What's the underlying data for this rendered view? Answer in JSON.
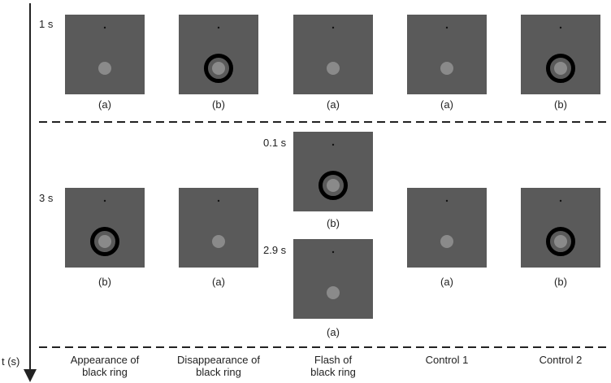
{
  "axis_label": "t (s)",
  "rows": {
    "top_time": "1 s",
    "bottom_time": "3 s",
    "flash_top_time": "0.1 s",
    "flash_bottom_time": "2.9 s"
  },
  "top_row": [
    {
      "caption": "(a)",
      "ring": false
    },
    {
      "caption": "(b)",
      "ring": true
    },
    {
      "caption": "(a)",
      "ring": false
    },
    {
      "caption": "(a)",
      "ring": false
    },
    {
      "caption": "(b)",
      "ring": true
    }
  ],
  "bottom_row": [
    {
      "caption": "(b)",
      "ring": true
    },
    {
      "caption": "(a)",
      "ring": false
    },
    {
      "caption": "(b)",
      "ring": true
    },
    {
      "caption": "(a)",
      "ring": false
    },
    {
      "caption": "(a)",
      "ring": false
    },
    {
      "caption": "(b)",
      "ring": true
    }
  ],
  "columns": [
    "Appearance of\nblack ring",
    "Disappearance of\nblack ring",
    "Flash of\nblack ring",
    "Control 1",
    "Control 2"
  ],
  "colors": {
    "panel": "#5a5a5a",
    "disk": "#8a8a8a",
    "ring": "#000000",
    "line": "#222222"
  }
}
